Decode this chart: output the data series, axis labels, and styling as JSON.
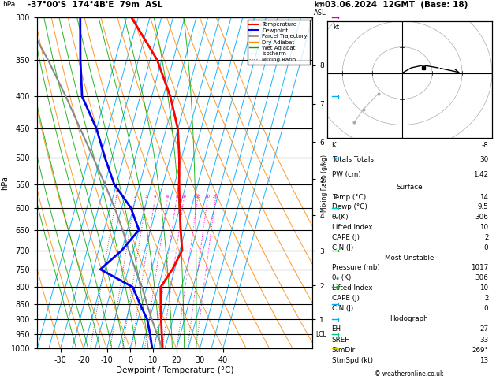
{
  "title_left": "-37°00'S  174°4B'E  79m  ASL",
  "title_right": "03.06.2024  12GMT  (Base: 18)",
  "xlabel": "Dewpoint / Temperature (°C)",
  "pressure_ticks": [
    300,
    350,
    400,
    450,
    500,
    550,
    600,
    650,
    700,
    750,
    800,
    850,
    900,
    950,
    1000
  ],
  "x_temp_ticks": [
    -30,
    -20,
    -10,
    0,
    10,
    20,
    30,
    40
  ],
  "skew": 32,
  "isotherm_temps": [
    -40,
    -35,
    -30,
    -25,
    -20,
    -15,
    -10,
    -5,
    0,
    5,
    10,
    15,
    20,
    25,
    30,
    35,
    40
  ],
  "dry_adiabat_T0s": [
    -40,
    -30,
    -20,
    -10,
    0,
    10,
    20,
    30,
    40,
    50,
    60,
    70,
    80,
    90,
    100,
    110
  ],
  "wet_adiabat_T0s": [
    -20,
    -15,
    -10,
    -5,
    0,
    5,
    10,
    15,
    20,
    25,
    30
  ],
  "mixing_ratio_ws": [
    1,
    2,
    3,
    4,
    6,
    8,
    10,
    15,
    20,
    25
  ],
  "temp_p": [
    1000,
    950,
    900,
    850,
    800,
    750,
    700,
    650,
    600,
    550,
    500,
    450,
    400,
    350,
    300
  ],
  "temp_T": [
    14,
    12,
    10,
    8,
    6,
    9,
    11,
    8,
    5,
    2,
    -1,
    -5,
    -12,
    -22,
    -38
  ],
  "dewp_p": [
    1000,
    950,
    900,
    850,
    800,
    750,
    700,
    650,
    600,
    550,
    500,
    450,
    400,
    350,
    300
  ],
  "dewp_T": [
    9.5,
    7,
    4,
    -1,
    -6,
    -22,
    -15,
    -10,
    -16,
    -26,
    -33,
    -40,
    -50,
    -55,
    -60
  ],
  "parcel_p": [
    1000,
    950,
    900,
    850,
    800,
    750,
    700,
    650,
    600,
    550,
    500,
    450,
    400,
    350,
    300
  ],
  "parcel_T": [
    14,
    10,
    6,
    2,
    -2,
    -7,
    -12,
    -17,
    -23,
    -30,
    -38,
    -47,
    -57,
    -69,
    -84
  ],
  "lcl_p": 950,
  "col_temp": "#ff0000",
  "col_dewp": "#0000ee",
  "col_parcel": "#888888",
  "col_dry": "#ff8800",
  "col_wet": "#00aa00",
  "col_iso": "#00aaff",
  "col_mix": "#ff00cc",
  "info_K": "-8",
  "info_TT": "30",
  "info_PW": "1.42",
  "surf_temp": "14",
  "surf_dewp": "9.5",
  "surf_theta": "306",
  "surf_LI": "10",
  "surf_CAPE": "2",
  "surf_CIN": "0",
  "mu_pressure": "1017",
  "mu_theta": "306",
  "mu_LI": "10",
  "mu_CAPE": "2",
  "mu_CIN": "0",
  "hodo_EH": "27",
  "hodo_SREH": "33",
  "hodo_StmDir": "269°",
  "hodo_StmSpd": "13",
  "copyright": "© weatheronline.co.uk"
}
